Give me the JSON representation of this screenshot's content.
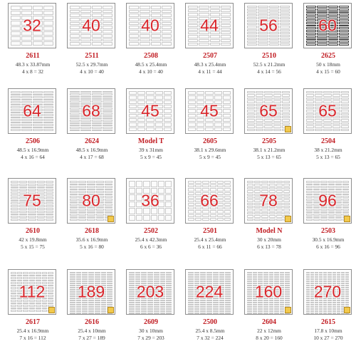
{
  "rows": [
    [
      {
        "num": "32",
        "code": "2611",
        "dims": "48.3 x 33.87mm",
        "count": "4 x 8 = 32",
        "cols": 4,
        "rows": 8,
        "corner": false,
        "dark": false
      },
      {
        "num": "40",
        "code": "2511",
        "dims": "52.5 x 29.7mm",
        "count": "4 x 10 = 40",
        "cols": 4,
        "rows": 10,
        "corner": false,
        "dark": false
      },
      {
        "num": "40",
        "code": "2508",
        "dims": "48.5 x 25.4mm",
        "count": "4 x 10 = 40",
        "cols": 4,
        "rows": 10,
        "corner": false,
        "dark": false
      },
      {
        "num": "44",
        "code": "2507",
        "dims": "48.3 x 25.4mm",
        "count": "4 x 11 = 44",
        "cols": 4,
        "rows": 11,
        "corner": false,
        "dark": false
      },
      {
        "num": "56",
        "code": "2510",
        "dims": "52.5 x 21.2mm",
        "count": "4 x 14 = 56",
        "cols": 4,
        "rows": 14,
        "corner": false,
        "dark": false
      },
      {
        "num": "60",
        "code": "2625",
        "dims": "50 x 18mm",
        "count": "4 x 15 = 60",
        "cols": 4,
        "rows": 15,
        "corner": false,
        "dark": true
      }
    ],
    [
      {
        "num": "64",
        "code": "2506",
        "dims": "48.5 x 16.9mm",
        "count": "4 x 16 = 64",
        "cols": 4,
        "rows": 16,
        "corner": false,
        "dark": false
      },
      {
        "num": "68",
        "code": "2624",
        "dims": "48.5 x 16.9mm",
        "count": "4 x 17 = 68",
        "cols": 4,
        "rows": 17,
        "corner": false,
        "dark": false
      },
      {
        "num": "45",
        "code": "Model T",
        "dims": "39 x 31mm",
        "count": "5 x 9 = 45",
        "cols": 5,
        "rows": 9,
        "corner": false,
        "dark": false
      },
      {
        "num": "45",
        "code": "2605",
        "dims": "38.1 x 29.6mm",
        "count": "5 x 9 = 45",
        "cols": 5,
        "rows": 9,
        "corner": false,
        "dark": false
      },
      {
        "num": "65",
        "code": "2505",
        "dims": "38.1 x 21.2mm",
        "count": "5 x 13 = 65",
        "cols": 5,
        "rows": 13,
        "corner": true,
        "dark": false
      },
      {
        "num": "65",
        "code": "2504",
        "dims": "38 x 21.2mm",
        "count": "5 x 13 = 65",
        "cols": 5,
        "rows": 13,
        "corner": false,
        "dark": false
      }
    ],
    [
      {
        "num": "75",
        "code": "2610",
        "dims": "42 x 19.8mm",
        "count": "5 x 15 = 75",
        "cols": 5,
        "rows": 15,
        "corner": false,
        "dark": false
      },
      {
        "num": "80",
        "code": "2618",
        "dims": "35.6 x 16.9mm",
        "count": "5 x 16 = 80",
        "cols": 5,
        "rows": 16,
        "corner": true,
        "dark": false
      },
      {
        "num": "36",
        "code": "2502",
        "dims": "25.4 x 42.3mm",
        "count": "6 x 6 = 36",
        "cols": 6,
        "rows": 6,
        "corner": false,
        "dark": false
      },
      {
        "num": "66",
        "code": "2501",
        "dims": "25.4 x 25.4mm",
        "count": "6 x 11 = 66",
        "cols": 6,
        "rows": 11,
        "corner": false,
        "dark": false
      },
      {
        "num": "78",
        "code": "Model N",
        "dims": "30 x 20mm",
        "count": "6 x 13 = 78",
        "cols": 6,
        "rows": 13,
        "corner": true,
        "dark": false
      },
      {
        "num": "96",
        "code": "2503",
        "dims": "30.5 x 16.9mm",
        "count": "6 x 16 = 96",
        "cols": 6,
        "rows": 16,
        "corner": true,
        "dark": false
      }
    ],
    [
      {
        "num": "112",
        "code": "2617",
        "dims": "25.4 x 16.9mm",
        "count": "7 x 16 = 112",
        "cols": 7,
        "rows": 16,
        "corner": true,
        "dark": false
      },
      {
        "num": "189",
        "code": "2616",
        "dims": "25.4 x 10mm",
        "count": "7 x 27 = 189",
        "cols": 7,
        "rows": 27,
        "corner": true,
        "dark": false
      },
      {
        "num": "203",
        "code": "2609",
        "dims": "30 x 10mm",
        "count": "7 x 29 = 203",
        "cols": 7,
        "rows": 29,
        "corner": false,
        "dark": false
      },
      {
        "num": "224",
        "code": "2500",
        "dims": "25.4 x 8.5mm",
        "count": "7 x 32 = 224",
        "cols": 7,
        "rows": 32,
        "corner": false,
        "dark": false
      },
      {
        "num": "160",
        "code": "2604",
        "dims": "22 x 12mm",
        "count": "8 x 20 = 160",
        "cols": 8,
        "rows": 20,
        "corner": true,
        "dark": false
      },
      {
        "num": "270",
        "code": "2615",
        "dims": "17.8 x 10mm",
        "count": "10 x 27 = 270",
        "cols": 10,
        "rows": 27,
        "corner": true,
        "dark": false
      }
    ]
  ],
  "colors": {
    "number": "#d9262b",
    "code": "#c11d23",
    "corner": "#f2c94c"
  }
}
